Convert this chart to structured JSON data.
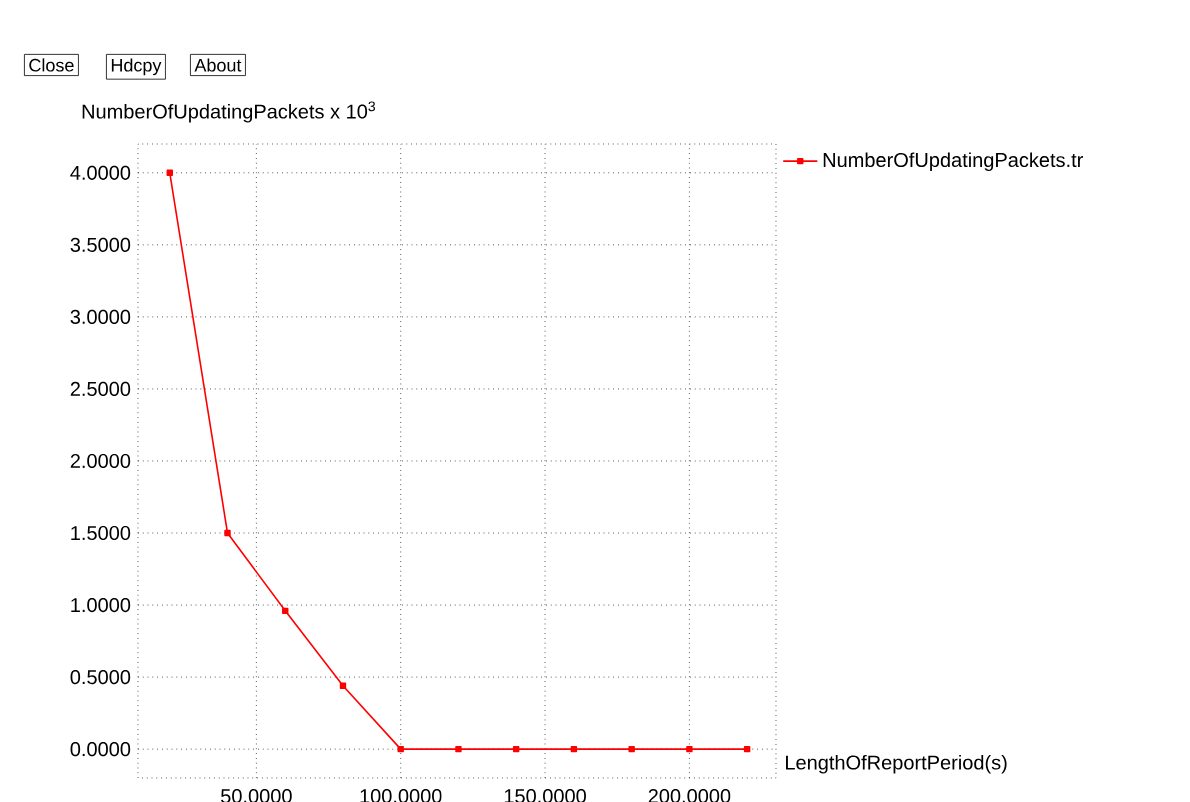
{
  "chart_data": {
    "type": "line",
    "xlabel": "LengthOfReportPeriod(s)",
    "ylabel": "NumberOfUpdatingPackets x 10$^{3}$",
    "x": [
      20,
      40,
      60,
      80,
      100,
      120,
      140,
      160,
      180,
      200,
      220
    ],
    "series": [
      {
        "name": "NumberOfUpdatingPackets.tr",
        "color": "#ff0000",
        "values": [
          4.0,
          1.5,
          0.96,
          0.44,
          0,
          0,
          0,
          0,
          0,
          0,
          0
        ]
      }
    ],
    "xlim": [
      9,
      230
    ],
    "ylim": [
      -0.2,
      4.2
    ],
    "xticks": [
      {
        "value": 50,
        "label": "50.0000"
      },
      {
        "value": 100,
        "label": "100.0000"
      },
      {
        "value": 150,
        "label": "150.0000"
      },
      {
        "value": 200,
        "label": "200.0000"
      }
    ],
    "yticks": [
      {
        "value": 0,
        "label": "0.0000"
      },
      {
        "value": 0.5,
        "label": "0.5000"
      },
      {
        "value": 1,
        "label": "1.0000"
      },
      {
        "value": 1.5,
        "label": "1.5000"
      },
      {
        "value": 2,
        "label": "2.0000"
      },
      {
        "value": 2.5,
        "label": "2.5000"
      },
      {
        "value": 3,
        "label": "3.0000"
      },
      {
        "value": 3.5,
        "label": "3.5000"
      },
      {
        "value": 4,
        "label": "4.0000"
      }
    ],
    "grid": true,
    "legend": "right",
    "marker": "square",
    "line_style": "solid",
    "annotations": [
      "Close",
      "Hdcpy",
      "About"
    ]
  }
}
